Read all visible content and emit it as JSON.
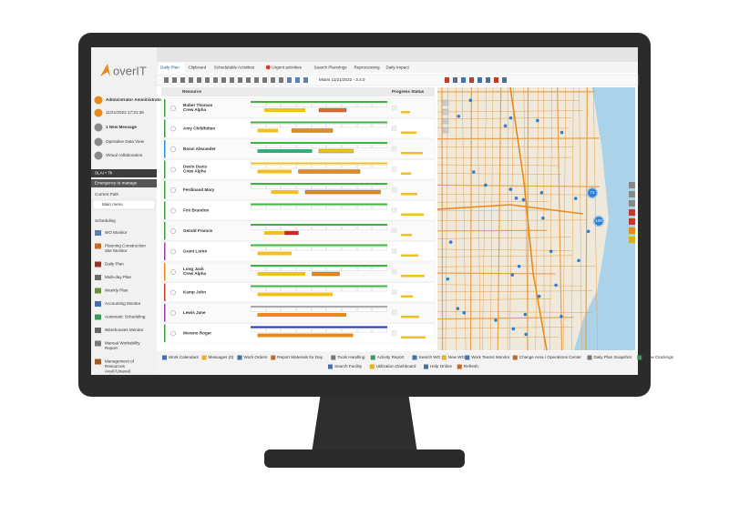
{
  "logo": "overIT",
  "sidebar": {
    "user": "Administrator Amministratore",
    "datetime": "11/21/2022 17:31:38",
    "message": "1 New Message",
    "links": [
      "Operative Data View",
      "Virtual collaboration"
    ],
    "sla": "SLAI • 7h",
    "emergency": "Emergency to manage",
    "current_path": "Current Path",
    "main_menu": "Main menu",
    "section": "Scheduling",
    "menu": [
      "WO Monitor",
      "Planning Construction Site Monitor",
      "Daily Plan",
      "Multi-day Plan",
      "Weekly Plan",
      "Accounting Monitor",
      "Automatic Scheduling",
      "Warehouses Monitor",
      "Manual Workability Report",
      "Management of Resources Avail./Unavail. Validations"
    ]
  },
  "tabs": [
    "Daily Plan",
    "Clipboard",
    "Schedulable Activities",
    "Urgent activities",
    "Search Plannings",
    "Reprocessing",
    "Daily Impact"
  ],
  "toolbar": {
    "context": "Miami 11/21/2022 - 3.4.0"
  },
  "gantt": {
    "columns": [
      "Resource",
      "Progress Status"
    ],
    "resources": [
      {
        "name": "Buber Thomas",
        "crew": "Crew Alpha"
      },
      {
        "name": "Amy Childhitten"
      },
      {
        "name": "Bossi Alexander"
      },
      {
        "name": "Devin Davis",
        "crew": "Crew Alpha"
      },
      {
        "name": "Ferdinand Mary"
      },
      {
        "name": "Fox Brandon"
      },
      {
        "name": "Gerald Francis"
      },
      {
        "name": "Grant Loren"
      },
      {
        "name": "Long Jack",
        "crew": "Crew Alpha"
      },
      {
        "name": "Kamp John"
      },
      {
        "name": "Lewis Jane"
      },
      {
        "name": "Moreno Roger"
      }
    ]
  },
  "map": {
    "clusters": [
      "71",
      "108"
    ]
  },
  "footer": {
    "row1": [
      "Work Calendars",
      "Messages (0)",
      "Work Orders",
      "Report Materials for Day",
      "Tools Handling",
      "Activity Report",
      "Search WO",
      "New WO",
      "Work Teams Monitor",
      "Change Area / Operations Center",
      "Daily Plan Snapshot",
      "Show Clockings"
    ],
    "row2": [
      "Search Facility",
      "Utilization Dashboard",
      "Help Online",
      "Refresh"
    ]
  }
}
